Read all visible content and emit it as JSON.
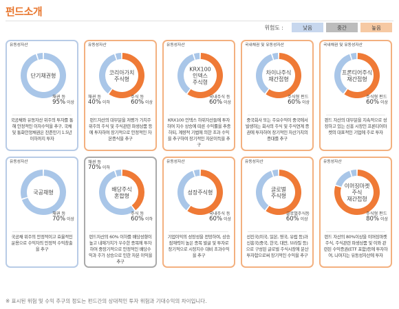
{
  "page": {
    "title": "펀드소개",
    "legend": {
      "label": "위험도 :",
      "items": [
        {
          "text": "낮음",
          "color": "#c7d7ee"
        },
        {
          "text": "중간",
          "color": "#bcbcbc"
        },
        {
          "text": "높음",
          "color": "#f6c9a3"
        }
      ]
    },
    "footnote": "※ 표시된 위험 및 수익 추구의 정도는 펀드간의 상대적인 투자 위험과 기대수익의 차이입니다."
  },
  "colors": {
    "stock": "#ef7a36",
    "bond": "#a9c6e8",
    "liquid": "#a9c6e8"
  },
  "funds": [
    {
      "risk": "low",
      "name_lines": [
        "단기채권형"
      ],
      "top_label": "유동성자산",
      "right_label": {
        "name": "채권 등",
        "pct": "95%",
        "suffix": " 이상"
      },
      "left_label": null,
      "stock": 0,
      "bond": 95,
      "liquid": 5,
      "desc": "국공채와 유동자산 위주의 투자를 통해 안정적인 이자수익을 추구, 국채 및 통화안정채권은 잔존만기 1.5년 이하까지 투자"
    },
    {
      "risk": "high",
      "name_lines": [
        "코리아가치",
        "주식형"
      ],
      "top_label": "유동성자산",
      "right_label": {
        "name": "주식 등",
        "pct": "60%",
        "suffix": " 이상"
      },
      "left_label": {
        "name": "채권 등",
        "pct": "40%",
        "suffix": " 이하"
      },
      "stock": 60,
      "bond": 35,
      "liquid": 5,
      "desc": "펀드자산의 대부분을 저평가 가치주 위주의 주식 및 주식관련 파생상품 등에 투자하여 장기적으로 안정적인 자본증식을 추구"
    },
    {
      "risk": "high",
      "name_lines": [
        "KRX100",
        "인덱스",
        "주식형"
      ],
      "top_label": "유동성자산",
      "right_label": {
        "name": "국내주식 등",
        "pct": "60%",
        "suffix": " 이상"
      },
      "left_label": null,
      "stock": 60,
      "bond": 35,
      "liquid": 5,
      "desc": "KRX100 인덱스 하위자산들에 투자하여 지수 상승에 따른 수익률을 추종하되, 계량적 기법에 의한 초과 수익을 추구하여 장기적인 자본이득을 추구"
    },
    {
      "risk": "high",
      "name_lines": [
        "차이나주식",
        "재간접형"
      ],
      "top_label": "국내채권 및 유동성자산",
      "right_label": {
        "name": "주식형 펀드",
        "pct": "60%",
        "suffix": " 이상"
      },
      "left_label": null,
      "stock": 60,
      "bond": 35,
      "liquid": 5,
      "desc": "중국회사 또는 주요수익이 중국에서 발생하는 회사의 주식 및 주식연계 증권에 투자하여 장기적인 자산가치의 증대를 추구"
    },
    {
      "risk": "high",
      "name_lines": [
        "프론티어주식",
        "재간접형"
      ],
      "top_label": "국내채권 및 유동성자산",
      "right_label": {
        "name": "주식형 펀드",
        "pct": "60%",
        "suffix": " 이상"
      },
      "left_label": null,
      "stock": 60,
      "bond": 35,
      "liquid": 5,
      "desc": "펀드 자산의 대부분을 지속적으로 성장하고 있는 신흥 시장인 프론티어마켓의 대표적인 기업에 주로 투자"
    },
    {
      "risk": "low",
      "name_lines": [
        "국공채형"
      ],
      "top_label": "유동성자산",
      "right_label": {
        "name": "채권 등",
        "pct": "70%",
        "suffix": " 이상"
      },
      "left_label": null,
      "stock": 0,
      "bond": 70,
      "liquid": 30,
      "desc": "국공채 위주의 안정적이고 효율적인 운용으로 수익자의 안정적 수익창출을 추구"
    },
    {
      "risk": "mid",
      "name_lines": [
        "배당주식",
        "혼합형"
      ],
      "top_label": "",
      "right_label": {
        "name": "주식 등",
        "pct": "60%",
        "suffix": " 이하"
      },
      "left_label": {
        "name": "채권 등",
        "pct": "70%",
        "suffix": " 이하"
      },
      "stock": 40,
      "bond": 55,
      "liquid": 5,
      "desc": "펀드자산의 60% 이하를 배당성향이 높고 내재가치가 우수한 종목에 투자하여 중장기적으로 안정적인 배당수익과 주가 상승으로 인한 자본 이익을 추구"
    },
    {
      "risk": "high",
      "name_lines": [
        "성장주식형"
      ],
      "top_label": "유동성자산",
      "right_label": {
        "name": "국내주식 등",
        "pct": "60%",
        "suffix": " 이상"
      },
      "left_label": null,
      "stock": 60,
      "bond": 35,
      "liquid": 5,
      "desc": "기업이익의 성장성을 전망하여, 상승 잠재력이 높은 종목 발굴 및 투자로 장기적으로 시장지수 대비 초과수익을 추구"
    },
    {
      "risk": "high",
      "name_lines": [
        "글로벌",
        "주식형"
      ],
      "top_label": "유동성자산",
      "right_label": {
        "name": "글로벌주식등",
        "pct": "60%",
        "suffix": " 이상"
      },
      "left_label": null,
      "stock": 60,
      "bond": 35,
      "liquid": 5,
      "desc": "선진국(미국, 일본, 영국, 유럽 등)과 신흥국(중국, 한국, 대만, 브라질 등)으로 구성된 글로벌 주식시장에 분산 투자함으로써 장기적인 수익을 추구"
    },
    {
      "risk": "high",
      "name_lines": [
        "이머징마켓",
        "주식",
        "재간접형"
      ],
      "top_label": "유동성자산",
      "right_label": {
        "name": "주식형 펀드",
        "pct": "80%",
        "suffix": " 이상"
      },
      "left_label": null,
      "stock": 80,
      "bond": 15,
      "liquid": 5,
      "desc": "펀드 자산의 80%이상을 이머징마켓 주식, 주식관련 파생상품 및 이와 관련된 수익증권(ETF 포함)등에 투자하여, 나머지는 유동성자산에 투자"
    }
  ]
}
